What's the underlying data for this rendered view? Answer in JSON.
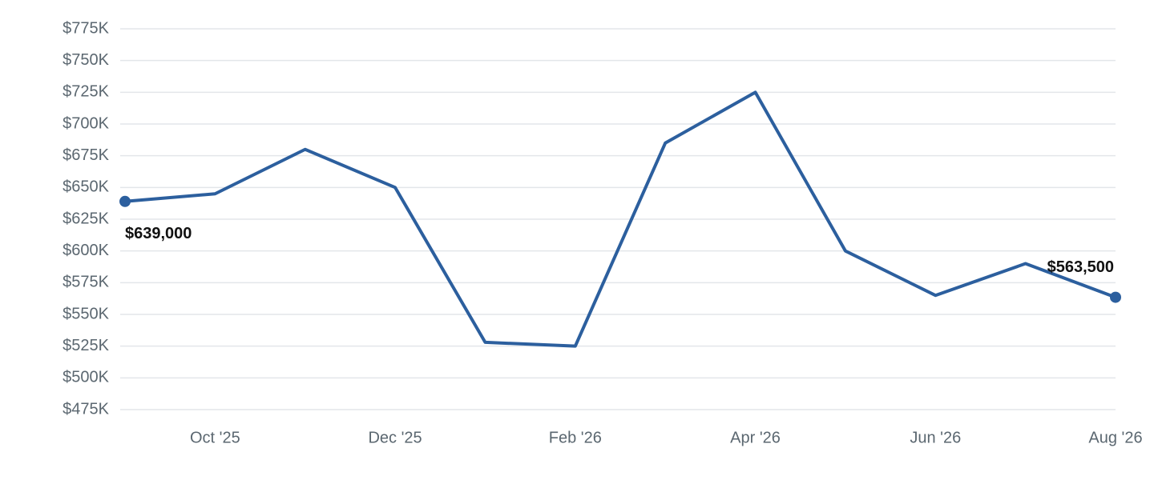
{
  "chart_data": {
    "type": "line",
    "categories": [
      null,
      "Oct '25",
      null,
      "Dec '25",
      null,
      "Feb '26",
      null,
      "Apr '26",
      null,
      "Jun '26",
      null,
      "Aug '26"
    ],
    "series": [
      {
        "color": "#2c5f9e",
        "values": [
          639000,
          645000,
          680000,
          650000,
          528000,
          525000,
          685000,
          725000,
          600000,
          565000,
          590000,
          563500
        ],
        "value_labels": [
          "$639,000",
          null,
          null,
          null,
          null,
          null,
          null,
          null,
          null,
          null,
          null,
          "$563,500"
        ]
      }
    ],
    "ylim": [
      475000,
      775000
    ],
    "yticks": [
      {
        "value": 475000,
        "label": "$475K"
      },
      {
        "value": 500000,
        "label": "$500K"
      },
      {
        "value": 525000,
        "label": "$525K"
      },
      {
        "value": 550000,
        "label": "$550K"
      },
      {
        "value": 575000,
        "label": "$575K"
      },
      {
        "value": 600000,
        "label": "$600K"
      },
      {
        "value": 625000,
        "label": "$625K"
      },
      {
        "value": 650000,
        "label": "$650K"
      },
      {
        "value": 675000,
        "label": "$675K"
      },
      {
        "value": 700000,
        "label": "$700K"
      },
      {
        "value": 725000,
        "label": "$725K"
      },
      {
        "value": 750000,
        "label": "$750K"
      },
      {
        "value": 775000,
        "label": "$775K"
      }
    ],
    "grid": true
  }
}
